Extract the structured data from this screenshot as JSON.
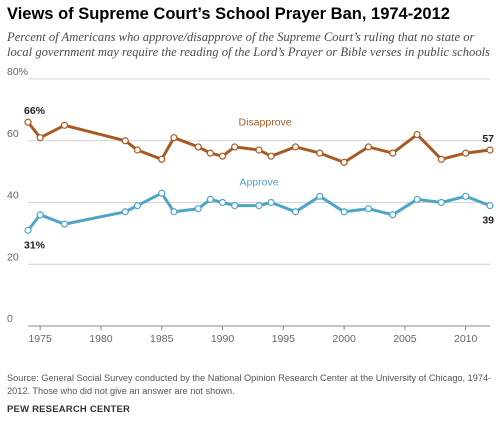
{
  "header": {
    "title": "Views of Supreme Court’s School Prayer Ban, 1974-2012",
    "subtitle": "Percent of Americans who approve/disapprove of the Supreme Court’s ruling that no state or local government may require the reading of the Lord’s Prayer or Bible verses in public schools"
  },
  "footer": {
    "source": "Source: General Social Survey conducted by the National Opinion Research Center at the University of Chicago, 1974-2012. Those who did not give an answer are not shown.",
    "brand": "PEW RESEARCH CENTER"
  },
  "colors": {
    "disapprove": "#a85a22",
    "approve": "#4ea5c8",
    "grid": "#d4d4d4",
    "axis": "#888888",
    "tick_text": "#666666"
  },
  "chart_data": {
    "type": "line",
    "xlim": [
      1974,
      2012
    ],
    "ylim": [
      0,
      80
    ],
    "xticks": [
      1975,
      1980,
      1985,
      1990,
      1995,
      2000,
      2005,
      2010
    ],
    "yticks": [
      {
        "value": 0,
        "label": "0"
      },
      {
        "value": 20,
        "label": "20"
      },
      {
        "value": 40,
        "label": "40"
      },
      {
        "value": 60,
        "label": "60"
      },
      {
        "value": 80,
        "label": "80%"
      }
    ],
    "grid": "horizontal",
    "series": [
      {
        "name": "Disapprove",
        "color": "#a85a22",
        "x": [
          1974,
          1975,
          1977,
          1982,
          1983,
          1985,
          1986,
          1988,
          1989,
          1990,
          1991,
          1993,
          1994,
          1996,
          1998,
          2000,
          2002,
          2004,
          2006,
          2008,
          2010,
          2012
        ],
        "y": [
          66,
          61,
          65,
          60,
          57,
          54,
          61,
          58,
          56,
          55,
          58,
          57,
          55,
          58,
          56,
          53,
          58,
          56,
          62,
          54,
          56,
          57
        ]
      },
      {
        "name": "Approve",
        "color": "#4ea5c8",
        "x": [
          1974,
          1975,
          1977,
          1982,
          1983,
          1985,
          1986,
          1988,
          1989,
          1990,
          1991,
          1993,
          1994,
          1996,
          1998,
          2000,
          2002,
          2004,
          2006,
          2008,
          2010,
          2012
        ],
        "y": [
          31,
          36,
          33,
          37,
          39,
          43,
          37,
          38,
          41,
          40,
          39,
          39,
          40,
          37,
          42,
          37,
          38,
          36,
          41,
          40,
          42,
          39
        ]
      }
    ],
    "annotations": [
      {
        "text": "66%",
        "series": 0,
        "index": 0,
        "position": "above"
      },
      {
        "text": "57",
        "series": 0,
        "index": 21,
        "position": "above"
      },
      {
        "text": "31%",
        "series": 1,
        "index": 0,
        "position": "below"
      },
      {
        "text": "39",
        "series": 1,
        "index": 21,
        "position": "below"
      }
    ],
    "series_labels": [
      {
        "text": "Disapprove",
        "x": 1993.5,
        "y": 65
      },
      {
        "text": "Approve",
        "x": 1993,
        "y": 45.5
      }
    ]
  }
}
